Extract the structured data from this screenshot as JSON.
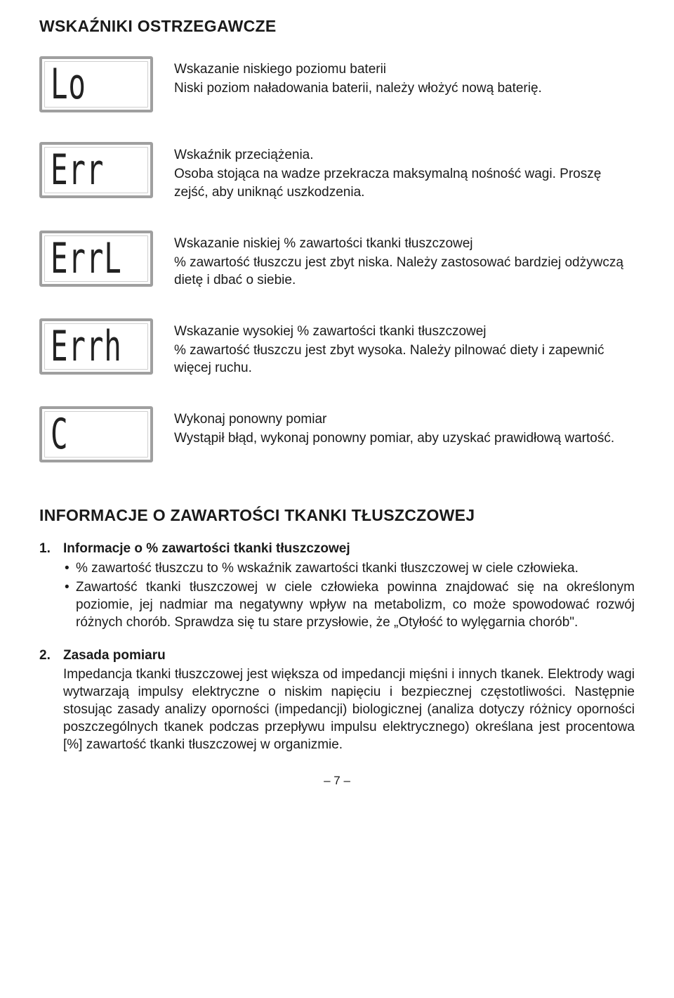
{
  "section1_title": "WSKAŹNIKI OSTRZEGAWCZE",
  "indicators": [
    {
      "lcd": "Lo",
      "title": "Wskazanie niskiego poziomu baterii",
      "desc": "Niski poziom naładowania baterii, należy włożyć nową baterię."
    },
    {
      "lcd": "Err",
      "title": "Wskaźnik przeciążenia.",
      "desc": "Osoba stojąca na wadze przekracza maksymalną nośność wagi. Proszę zejść, aby uniknąć uszkodzenia."
    },
    {
      "lcd": "ErrL",
      "title": "Wskazanie niskiej % zawartości tkanki tłuszczowej",
      "desc": "% zawartość tłuszczu jest zbyt niska. Należy zastosować bardziej odżywczą dietę i dbać o siebie."
    },
    {
      "lcd": "Errh",
      "title": "Wskazanie wysokiej % zawartości tkanki tłuszczowej",
      "desc": "% zawartość tłuszczu jest zbyt wysoka. Należy pilnować diety i zapewnić więcej ruchu."
    },
    {
      "lcd": "C",
      "title": "Wykonaj ponowny pomiar",
      "desc": "Wystąpił błąd, wykonaj ponowny pomiar, aby uzyskać prawidłową wartość."
    }
  ],
  "section2_title": "INFORMACJE O ZAWARTOŚCI TKANKI TŁUSZCZOWEJ",
  "info": [
    {
      "num": "1.",
      "subtitle": "Informacje o % zawartości tkanki tłuszczowej",
      "bullets": [
        "% zawartość tłuszczu to % wskaźnik zawartości tkanki tłuszczowej w ciele człowieka.",
        "Zawartość tkanki tłuszczowej w ciele człowieka powinna znajdować się na określonym poziomie, jej nadmiar ma negatywny wpływ na metabolizm, co może spowodować rozwój różnych chorób. Sprawdza się tu stare przysłowie, że „Otyłość to wylęgarnia chorób\"."
      ]
    },
    {
      "num": "2.",
      "subtitle": " Zasada pomiaru",
      "para": "Impedancja tkanki tłuszczowej jest większa od impedancji mięśni i innych tkanek. Elektrody wagi wytwarzają impulsy elektryczne o niskim napięciu i bezpiecznej częstotliwości. Następnie stosując zasady analizy oporności (impedancji) biologicznej (analiza dotyczy różnicy oporności poszczególnych tkanek podczas przepływu impulsu elektrycznego) określana jest procentowa [%] zawartość tkanki tłuszczowej w organizmie."
    }
  ],
  "page_number": "– 7 –",
  "colors": {
    "text": "#1a1a1a",
    "lcd_border": "#9f9f9f",
    "lcd_inner_border": "#cfcfcf",
    "background": "#ffffff"
  },
  "font_sizes": {
    "body": 19,
    "section_title": 23,
    "lcd": 48,
    "footer": 17
  }
}
